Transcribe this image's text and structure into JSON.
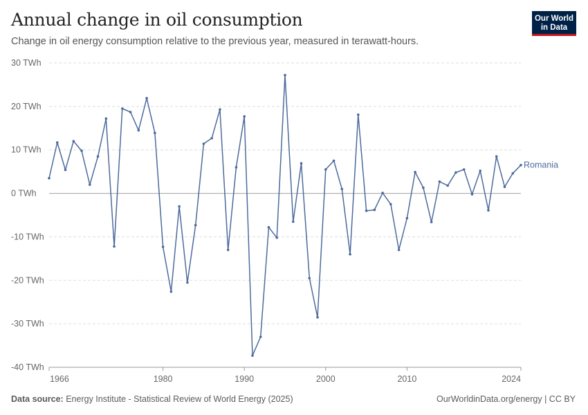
{
  "header": {
    "title": "Annual change in oil consumption",
    "subtitle": "Change in oil energy consumption relative to the previous year, measured in terawatt-hours."
  },
  "logo": {
    "line1": "Our World",
    "line2": "in Data"
  },
  "footer": {
    "source_label": "Data source:",
    "source_text": "Energy Institute - Statistical Review of World Energy (2025)",
    "link": "OurWorldinData.org/energy | CC BY"
  },
  "colors": {
    "series": "#4c6a9c",
    "grid": "#dddddd",
    "zero": "#a0a0a0",
    "text": "#666666"
  },
  "chart_data": {
    "type": "line",
    "title": "Annual change in oil consumption",
    "ylim": [
      -40,
      30
    ],
    "y_ticks": [
      -40,
      -30,
      -20,
      -10,
      0,
      10,
      20,
      30
    ],
    "y_tick_labels": [
      "-40 TWh",
      "-30 TWh",
      "-20 TWh",
      "-10 TWh",
      "0 TWh",
      "10 TWh",
      "20 TWh",
      "30 TWh"
    ],
    "xlim": [
      1966,
      2024
    ],
    "x_ticks": [
      1966,
      1980,
      1990,
      2000,
      2010,
      2024
    ],
    "x_tick_labels": [
      "1966",
      "1980",
      "1990",
      "2000",
      "2010",
      "2024"
    ],
    "grid": true,
    "series": [
      {
        "name": "Romania",
        "x": [
          1966,
          1967,
          1968,
          1969,
          1970,
          1971,
          1972,
          1973,
          1974,
          1975,
          1976,
          1977,
          1978,
          1979,
          1980,
          1981,
          1982,
          1983,
          1984,
          1985,
          1986,
          1987,
          1988,
          1989,
          1990,
          1991,
          1992,
          1993,
          1994,
          1995,
          1996,
          1997,
          1998,
          1999,
          2000,
          2001,
          2002,
          2003,
          2004,
          2005,
          2006,
          2007,
          2008,
          2009,
          2010,
          2011,
          2012,
          2013,
          2014,
          2015,
          2016,
          2017,
          2018,
          2019,
          2020,
          2021,
          2022,
          2023,
          2024
        ],
        "values": [
          3.5,
          11.7,
          5.4,
          12,
          9.8,
          2,
          8.5,
          17.2,
          -12.2,
          19.5,
          18.7,
          14.5,
          21.9,
          13.9,
          -12.3,
          -22.6,
          -3,
          -20.5,
          -7.3,
          11.4,
          12.7,
          19.3,
          -13,
          6,
          17.7,
          -37.3,
          -33,
          -7.8,
          -10.2,
          27.2,
          -6.5,
          6.9,
          -19.5,
          -28.5,
          5.5,
          7.5,
          1,
          -14,
          18.1,
          -4,
          -3.8,
          0.1,
          -2.5,
          -13,
          -5.7,
          4.9,
          1.3,
          -6.6,
          2.7,
          1.8,
          4.8,
          5.5,
          -0.2,
          5.2,
          -3.9,
          8.5,
          1.5,
          4.6,
          6.5
        ]
      }
    ]
  }
}
